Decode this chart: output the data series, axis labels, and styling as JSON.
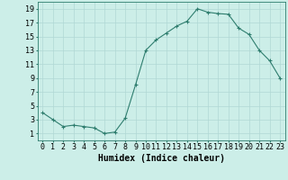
{
  "x": [
    0,
    1,
    2,
    3,
    4,
    5,
    6,
    7,
    8,
    9,
    10,
    11,
    12,
    13,
    14,
    15,
    16,
    17,
    18,
    19,
    20,
    21,
    22,
    23
  ],
  "y": [
    4,
    3,
    2,
    2.2,
    2,
    1.8,
    1,
    1.2,
    3.2,
    8,
    13,
    14.5,
    15.5,
    16.5,
    17.2,
    19,
    18.5,
    18.3,
    18.2,
    16.2,
    15.3,
    13,
    11.5,
    9
  ],
  "line_color": "#2e7d6e",
  "marker": "+",
  "bg_color": "#cceee8",
  "grid_color": "#b0d8d4",
  "xlabel": "Humidex (Indice chaleur)",
  "xlabel_fontsize": 7,
  "tick_fontsize": 6,
  "ylim": [
    0,
    20
  ],
  "xlim": [
    -0.5,
    23.5
  ],
  "yticks": [
    1,
    3,
    5,
    7,
    9,
    11,
    13,
    15,
    17,
    19
  ],
  "xticks": [
    0,
    1,
    2,
    3,
    4,
    5,
    6,
    7,
    8,
    9,
    10,
    11,
    12,
    13,
    14,
    15,
    16,
    17,
    18,
    19,
    20,
    21,
    22,
    23
  ]
}
